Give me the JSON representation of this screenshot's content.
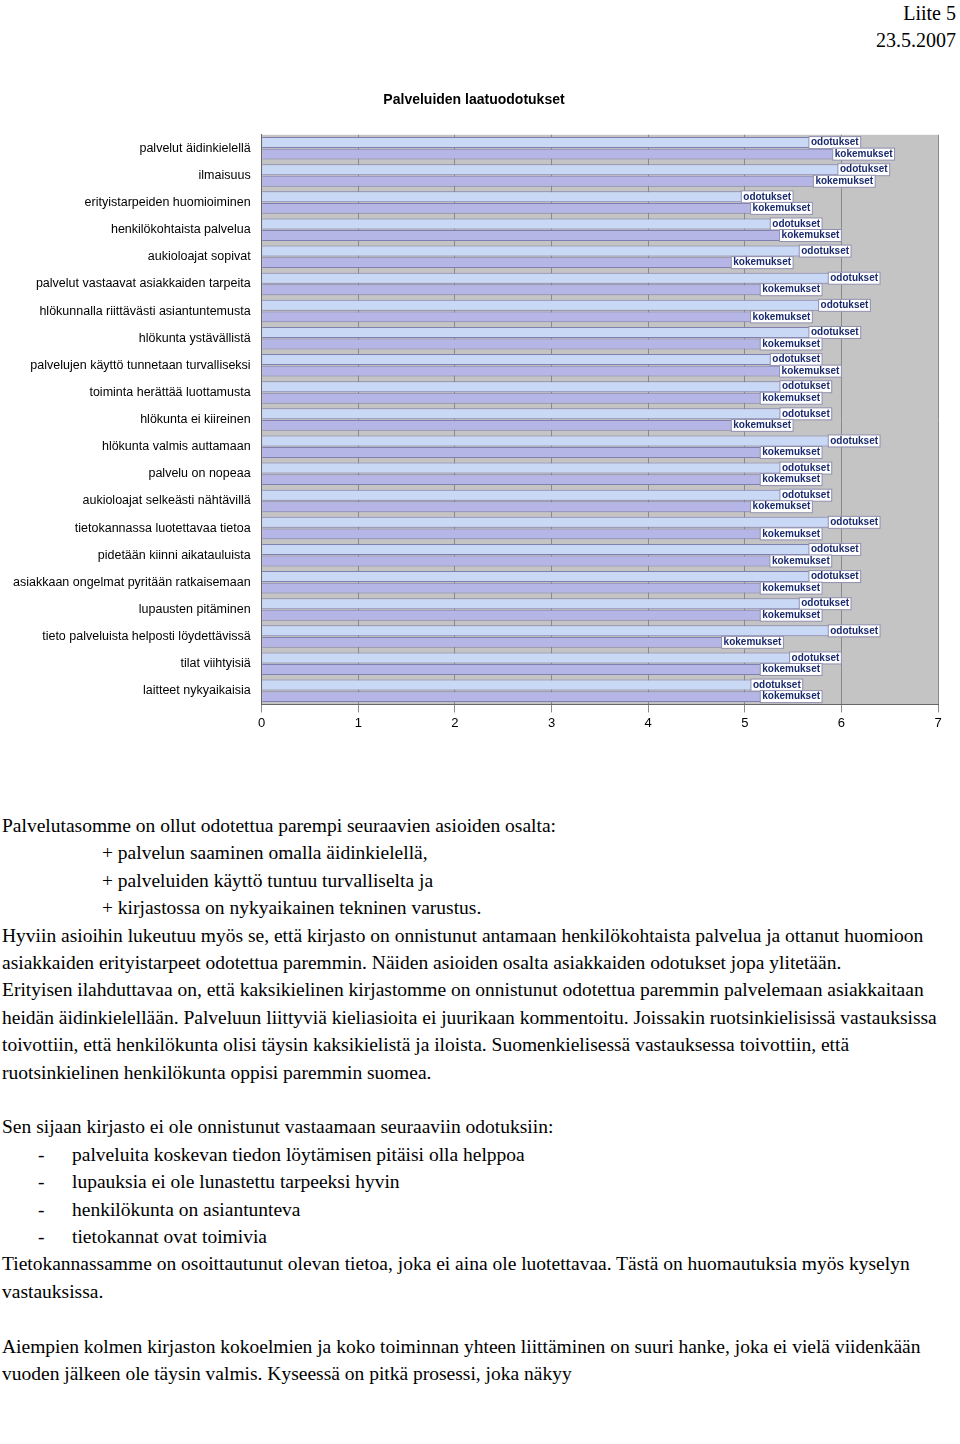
{
  "header": {
    "lines": [
      "Liite 5",
      "23.5.2007"
    ]
  },
  "chart_data": {
    "type": "bar",
    "title": "Palveluiden laatuodotukset",
    "orientation": "horizontal",
    "categories": [
      "palvelut äidinkielellä",
      "ilmaisuus",
      "erityistarpeiden huomioiminen",
      "henkilökohtaista palvelua",
      "aukioloajat sopivat",
      "palvelut vastaavat asiakkaiden tarpeita",
      "hlökunnalla riittävästi asiantuntemusta",
      "hlökunta ystävällistä",
      "palvelujen käyttö tunnetaan turvalliseksi",
      "toiminta herättää luottamusta",
      "hlökunta ei kiireinen",
      "hlökunta valmis auttamaan",
      "palvelu on nopeaa",
      "aukioloajat selkeästi nähtävillä",
      "tietokannassa luotettavaa tietoa",
      "pidetään kiinni aikatauluista",
      "asiakkaan ongelmat pyritään ratkaisemaan",
      "lupausten pitäminen",
      "tieto palveluista helposti löydettävissä",
      "tilat viihtyisiä",
      "laitteet nykyaikaisia"
    ],
    "series": [
      {
        "name": "odotukset",
        "color": "#c9d8f4",
        "values": [
          6.2,
          6.5,
          5.5,
          5.8,
          6.1,
          6.4,
          6.3,
          6.2,
          5.8,
          5.9,
          5.9,
          6.4,
          5.9,
          5.9,
          6.4,
          6.2,
          6.2,
          6.1,
          6.4,
          6.0,
          5.6
        ]
      },
      {
        "name": "kokemukset",
        "color": "#b6b6e6",
        "values": [
          6.55,
          6.35,
          5.7,
          6.0,
          5.5,
          5.8,
          5.7,
          5.8,
          6.0,
          5.8,
          5.5,
          5.8,
          5.8,
          5.7,
          5.8,
          5.9,
          5.8,
          5.8,
          5.4,
          5.8,
          5.8
        ]
      }
    ],
    "xlim": [
      0,
      7
    ],
    "xticks": [
      0,
      1,
      2,
      3,
      4,
      5,
      6,
      7
    ],
    "grid": true
  },
  "body": [
    {
      "type": "p",
      "text": "Palvelutasomme on ollut odotettua parempi seuraavien asioiden osalta:"
    },
    {
      "type": "plus",
      "items": [
        "+ palvelun saaminen omalla äidinkielellä,",
        "+ palveluiden käyttö tuntuu turvalliselta ja",
        "+ kirjastossa on nykyaikainen tekninen varustus."
      ]
    },
    {
      "type": "p",
      "text": "Hyviin asioihin lukeutuu myös se, että kirjasto on onnistunut antamaan henkilökohtaista palvelua ja ottanut huomioon asiakkaiden erityistarpeet odotettua paremmin. Näiden asioiden osalta asiakkaiden odotukset jopa ylitetään."
    },
    {
      "type": "p",
      "text": "Erityisen ilahduttavaa on, että kaksikielinen kirjastomme on onnistunut odotettua paremmin palvelemaan asiakkaitaan heidän äidinkielellään. Palveluun liittyviä kieliasioita ei juurikaan kommentoitu. Joissakin ruotsinkielisissä vastauksissa toivottiin, että henkilökunta olisi täysin kaksikielistä ja iloista. Suomenkielisessä vastauksessa toivottiin, että ruotsinkielinen henkilökunta oppisi paremmin suomea."
    },
    {
      "type": "p",
      "gap": true,
      "text": "Sen sijaan kirjasto ei ole onnistunut vastaamaan seuraaviin odotuksiin:"
    },
    {
      "type": "dash",
      "bullet": "-",
      "items": [
        "palveluita koskevan tiedon löytämisen pitäisi olla helppoa",
        "lupauksia ei ole lunastettu tarpeeksi hyvin",
        "henkilökunta on asiantunteva",
        "tietokannat ovat toimivia"
      ]
    },
    {
      "type": "p",
      "text": "Tietokannassamme on osoittautunut olevan tietoa, joka ei aina ole luotettavaa. Tästä on huomautuksia myös kyselyn vastauksissa."
    },
    {
      "type": "p",
      "gap": true,
      "text": "Aiempien kolmen kirjaston kokoelmien ja koko toiminnan yhteen liittäminen on suuri hanke, joka ei vielä viidenkään vuoden jälkeen ole täysin valmis. Kyseessä on pitkä prosessi, joka näkyy"
    }
  ]
}
